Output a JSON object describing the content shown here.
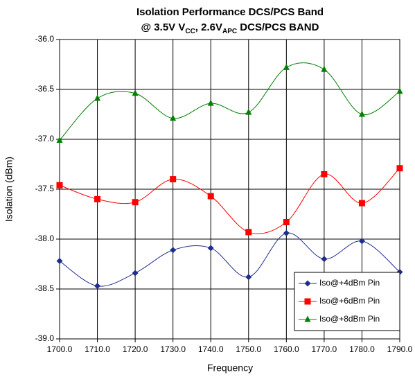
{
  "chart_data": {
    "type": "line",
    "title": "Isolation Performance DCS/PCS Band",
    "subtitle_parts": [
      {
        "text": "@ 3.5V V"
      },
      {
        "text": "CC",
        "sub": true
      },
      {
        "text": ", 2.6V"
      },
      {
        "text": "APC",
        "sub": true
      },
      {
        "text": " DCS/PCS BAND"
      }
    ],
    "xlabel": "Frequency",
    "ylabel": "Isolation (dBm)",
    "x": [
      1700,
      1710,
      1720,
      1730,
      1740,
      1750,
      1760,
      1770,
      1780,
      1790
    ],
    "xlim": [
      1700,
      1790
    ],
    "xticks": [
      {
        "value": 1700,
        "label": "1700.0"
      },
      {
        "value": 1710,
        "label": "1710.0"
      },
      {
        "value": 1720,
        "label": "1720.0"
      },
      {
        "value": 1730,
        "label": "1730.0"
      },
      {
        "value": 1740,
        "label": "1740.0"
      },
      {
        "value": 1750,
        "label": "1750.0"
      },
      {
        "value": 1760,
        "label": "1760.0"
      },
      {
        "value": 1770,
        "label": "1770.0"
      },
      {
        "value": 1780,
        "label": "1780.0"
      },
      {
        "value": 1790,
        "label": "1790.0"
      }
    ],
    "ylim": [
      -39,
      -36
    ],
    "yticks": [
      {
        "value": -39,
        "label": "-39.0"
      },
      -38.5,
      {
        "value": -38,
        "label": "-38.0"
      },
      -37.5,
      {
        "value": -37,
        "label": "-37.0"
      },
      -36.5,
      {
        "value": -36,
        "label": "-36.0"
      }
    ],
    "grid": true,
    "smooth": true,
    "legend": "lower right",
    "series": [
      {
        "name": "Iso@+4dBm Pin",
        "color": "#1f2d8c",
        "marker": "diamond",
        "values": [
          -38.22,
          -38.47,
          -38.34,
          -38.11,
          -38.09,
          -38.38,
          -37.94,
          -38.2,
          -38.02,
          -38.33
        ]
      },
      {
        "name": "Iso@+6dBm Pin",
        "color": "#ff0000",
        "marker": "square",
        "values": [
          -37.46,
          -37.6,
          -37.63,
          -37.4,
          -37.57,
          -37.93,
          -37.83,
          -37.35,
          -37.64,
          -37.29
        ]
      },
      {
        "name": "Iso@+8dBm Pin",
        "color": "#008000",
        "marker": "triangle",
        "values": [
          -37.01,
          -36.59,
          -36.54,
          -36.79,
          -36.64,
          -36.73,
          -36.28,
          -36.3,
          -36.75,
          -36.52
        ]
      }
    ]
  }
}
